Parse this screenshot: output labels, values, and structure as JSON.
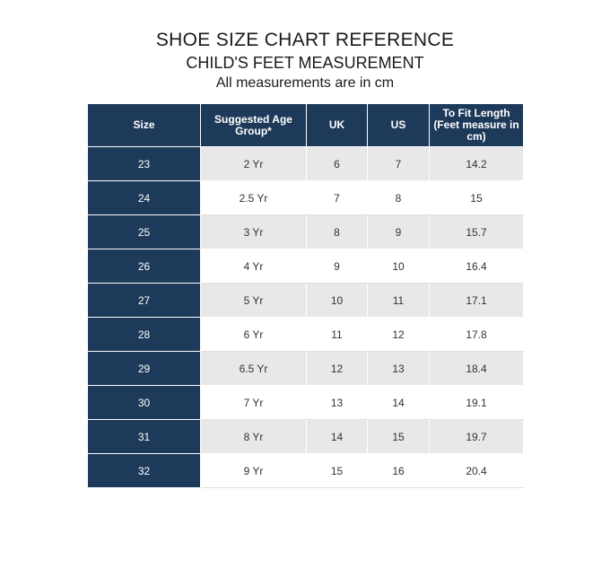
{
  "title": "SHOE SIZE CHART REFERENCE",
  "subtitle": "CHILD'S FEET MEASUREMENT",
  "note": "All measurements are in cm",
  "table": {
    "headers": [
      "Size",
      "Suggested Age Group*",
      "UK",
      "US",
      "To Fit Length (Feet measure in cm)"
    ],
    "rows": [
      [
        "23",
        "2 Yr",
        "6",
        "7",
        "14.2"
      ],
      [
        "24",
        "2.5 Yr",
        "7",
        "8",
        "15"
      ],
      [
        "25",
        "3 Yr",
        "8",
        "9",
        "15.7"
      ],
      [
        "26",
        "4 Yr",
        "9",
        "10",
        "16.4"
      ],
      [
        "27",
        "5 Yr",
        "10",
        "11",
        "17.1"
      ],
      [
        "28",
        "6 Yr",
        "11",
        "12",
        "17.8"
      ],
      [
        "29",
        "6.5 Yr",
        "12",
        "13",
        "18.4"
      ],
      [
        "30",
        "7 Yr",
        "13",
        "14",
        "19.1"
      ],
      [
        "31",
        "8 Yr",
        "14",
        "15",
        "19.7"
      ],
      [
        "32",
        "9 Yr",
        "15",
        "16",
        "20.4"
      ]
    ]
  },
  "colors": {
    "header_bg": "#1e3a5a",
    "stripe": "#e8e8e8"
  }
}
